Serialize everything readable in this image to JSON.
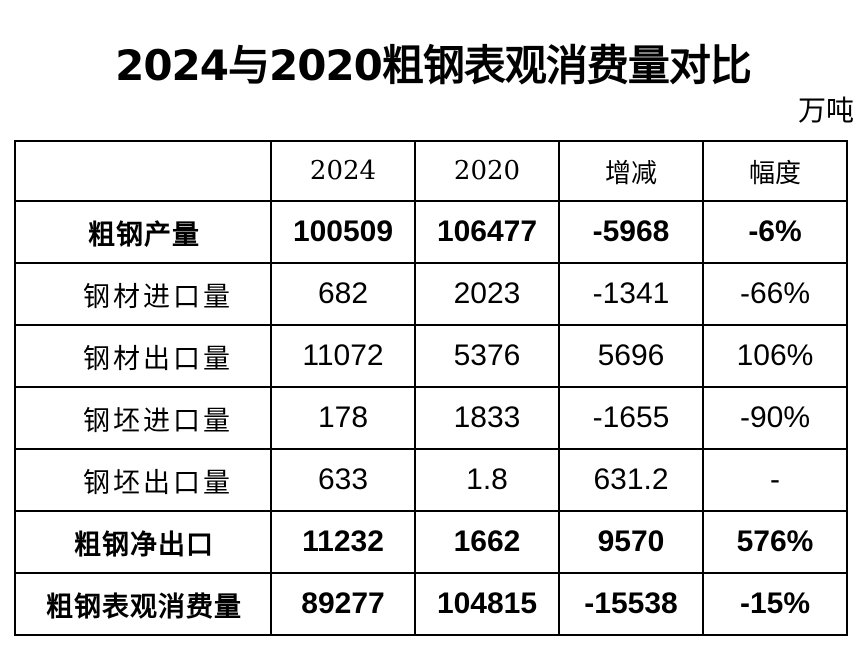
{
  "title": "2024与2020粗钢表观消费量对比",
  "unit": "万吨",
  "table": {
    "headers": [
      "",
      "2024",
      "2020",
      "增减",
      "幅度"
    ],
    "rows": [
      {
        "label": "粗钢产量",
        "values": [
          "100509",
          "106477",
          "-5968",
          "-6%"
        ]
      },
      {
        "label": "钢材进口量",
        "values": [
          "682",
          "2023",
          "-1341",
          "-66%"
        ]
      },
      {
        "label": "钢材出口量",
        "values": [
          "11072",
          "5376",
          "5696",
          "106%"
        ]
      },
      {
        "label": "钢坯进口量",
        "values": [
          "178",
          "1833",
          "-1655",
          "-90%"
        ]
      },
      {
        "label": "钢坯出口量",
        "values": [
          "633",
          "1.8",
          "631.2",
          "-"
        ]
      },
      {
        "label": "粗钢净出口",
        "values": [
          "11232",
          "1662",
          "9570",
          "576%"
        ]
      },
      {
        "label": "粗钢表观消费量",
        "values": [
          "89277",
          "104815",
          "-15538",
          "-15%"
        ]
      }
    ]
  }
}
